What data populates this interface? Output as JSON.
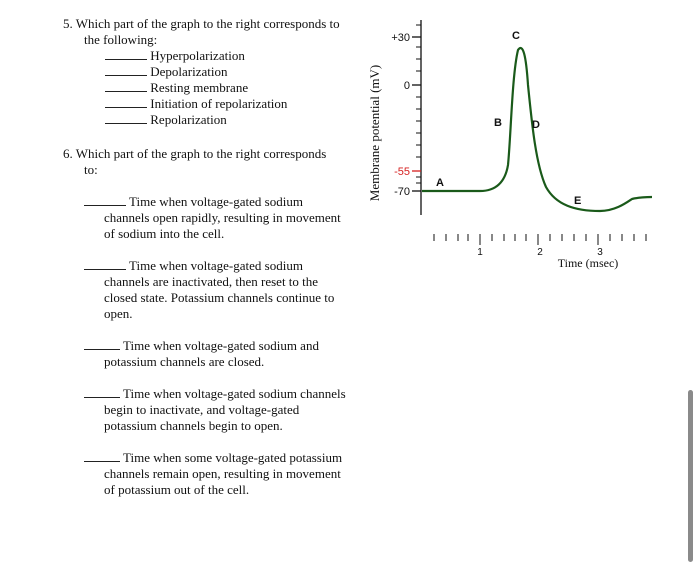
{
  "q5": {
    "number": "5.",
    "prompt_line1": "Which part of the graph to the right corresponds to",
    "prompt_line2": "the following:",
    "items": [
      "Hyperpolarization",
      "Depolarization",
      "Resting membrane",
      "Initiation of repolarization",
      "Repolarization"
    ]
  },
  "q6": {
    "number": "6.",
    "prompt_line1": "Which part of the graph to the right corresponds",
    "prompt_line2": "to:",
    "items": [
      {
        "first": "Time when voltage-gated sodium",
        "rest": [
          "channels open rapidly, resulting in movement",
          "of sodium into the cell."
        ]
      },
      {
        "first": "Time when voltage-gated sodium",
        "rest": [
          "channels are inactivated, then reset to the",
          "closed state.  Potassium channels continue to",
          "open."
        ]
      },
      {
        "first": "Time when voltage-gated sodium and",
        "rest": [
          "potassium channels are closed."
        ]
      },
      {
        "first": "Time when voltage-gated sodium channels",
        "rest": [
          "begin to inactivate, and voltage-gated",
          "potassium channels begin to open."
        ]
      },
      {
        "first": "Time when some voltage-gated potassium",
        "rest": [
          "channels remain open, resulting in movement",
          "of potassium out of the cell."
        ]
      }
    ]
  },
  "graph": {
    "ylabel": "Membrane potential (mV)",
    "xlabel": "Time (msec)",
    "y_ticks": [
      "+30",
      "0",
      "-55",
      "-70"
    ],
    "x_ticks": [
      "1",
      "2",
      "3"
    ],
    "point_labels": [
      "A",
      "B",
      "C",
      "D",
      "E"
    ],
    "threshold_color": "#d62020",
    "curve_color": "#1a5a1a"
  }
}
